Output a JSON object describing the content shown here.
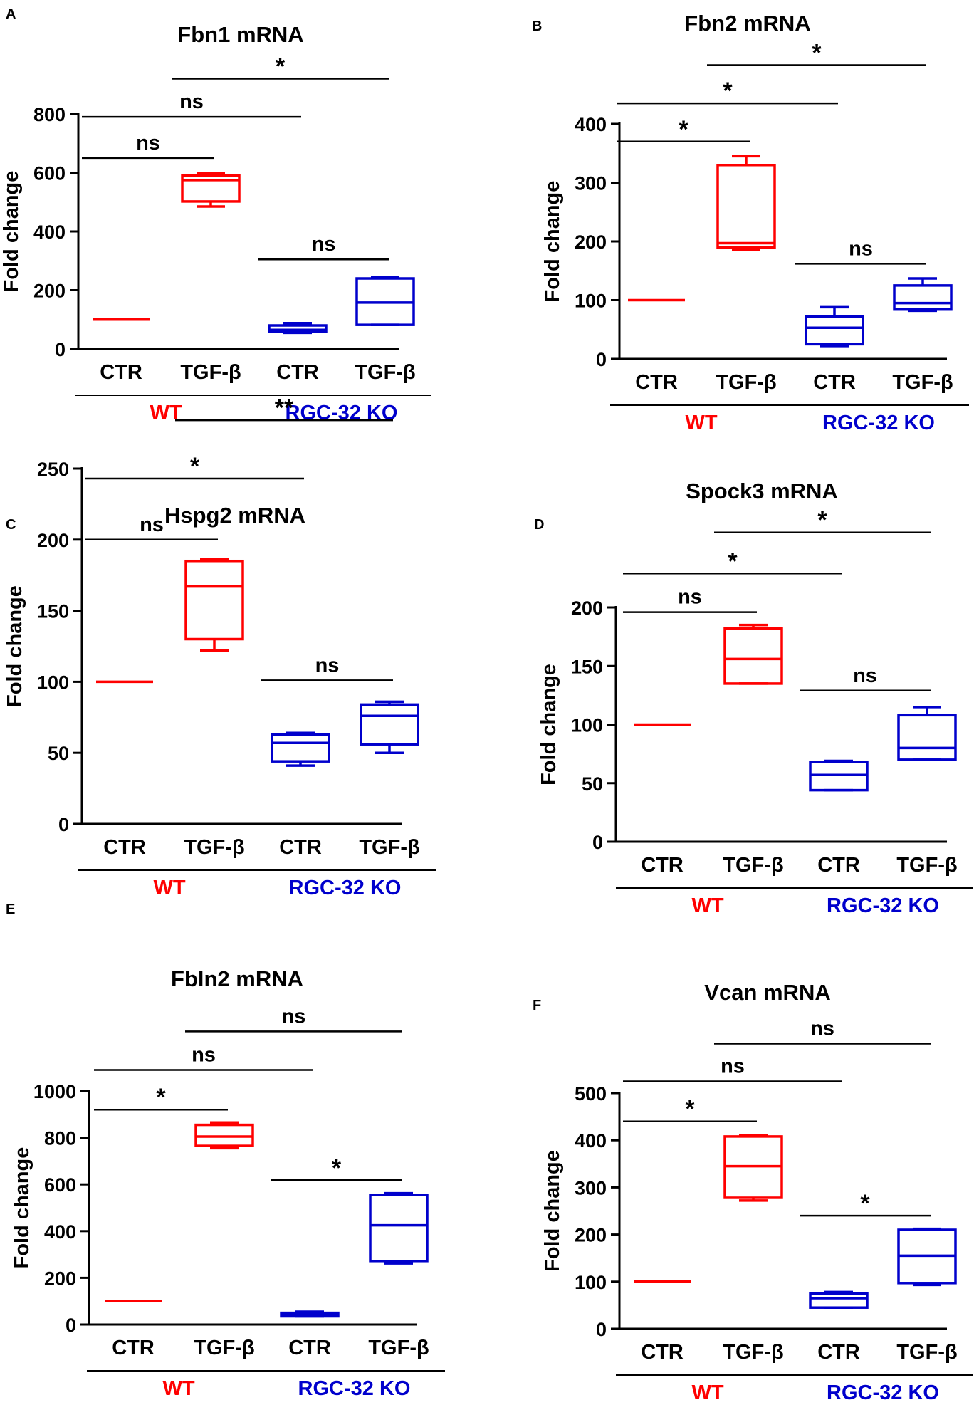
{
  "chart_data": [
    {
      "panel": "A",
      "type": "box",
      "title": "Fbn1 mRNA",
      "ylabel": "Fold change",
      "ylim": [
        0,
        800
      ],
      "yticks": [
        0,
        200,
        400,
        600,
        800
      ],
      "categories": [
        "CTR",
        "TGF-β",
        "CTR",
        "TGF-β"
      ],
      "groups": [
        {
          "label": "WT",
          "color": "#ff0000",
          "categories": [
            0,
            1
          ]
        },
        {
          "label": "RGC-32 KO",
          "color": "#0000cc",
          "categories": [
            2,
            3
          ]
        }
      ],
      "boxes": [
        {
          "category": 0,
          "group": 0,
          "min": 100,
          "q1": 100,
          "median": 100,
          "q3": 100,
          "max": 100
        },
        {
          "category": 1,
          "group": 0,
          "min": 485,
          "q1": 502,
          "median": 575,
          "q3": 590,
          "max": 598
        },
        {
          "category": 2,
          "group": 1,
          "min": 55,
          "q1": 58,
          "median": 65,
          "q3": 80,
          "max": 88
        },
        {
          "category": 3,
          "group": 1,
          "min": 82,
          "q1": 82,
          "median": 158,
          "q3": 240,
          "max": 245
        }
      ],
      "significance": [
        {
          "from": 0,
          "to": 1,
          "label": "ns",
          "level": 650
        },
        {
          "from": 2,
          "to": 3,
          "label": "ns",
          "level": 305
        },
        {
          "from": 0,
          "to": 2,
          "label": "ns",
          "level": 790
        },
        {
          "from": 1,
          "to": 3,
          "label": "*",
          "level": 920
        }
      ]
    },
    {
      "panel": "B",
      "type": "box",
      "title": "Fbn2 mRNA",
      "ylabel": "Fold change",
      "ylim": [
        0,
        400
      ],
      "yticks": [
        0,
        100,
        200,
        300,
        400
      ],
      "categories": [
        "CTR",
        "TGF-β",
        "CTR",
        "TGF-β"
      ],
      "groups": [
        {
          "label": "WT",
          "color": "#ff0000",
          "categories": [
            0,
            1
          ]
        },
        {
          "label": "RGC-32 KO",
          "color": "#0000cc",
          "categories": [
            2,
            3
          ]
        }
      ],
      "boxes": [
        {
          "category": 0,
          "group": 0,
          "min": 100,
          "q1": 100,
          "median": 100,
          "q3": 100,
          "max": 100
        },
        {
          "category": 1,
          "group": 0,
          "min": 186,
          "q1": 190,
          "median": 197,
          "q3": 330,
          "max": 345
        },
        {
          "category": 2,
          "group": 1,
          "min": 22,
          "q1": 25,
          "median": 53,
          "q3": 72,
          "max": 88
        },
        {
          "category": 3,
          "group": 1,
          "min": 82,
          "q1": 84,
          "median": 95,
          "q3": 125,
          "max": 137
        }
      ],
      "significance": [
        {
          "from": 0,
          "to": 1,
          "label": "*",
          "level": 370
        },
        {
          "from": 2,
          "to": 3,
          "label": "ns",
          "level": 162
        },
        {
          "from": 0,
          "to": 2,
          "label": "*",
          "level": 435
        },
        {
          "from": 1,
          "to": 3,
          "label": "*",
          "level": 500
        }
      ]
    },
    {
      "panel": "C",
      "type": "box",
      "title": "Hspg2 mRNA",
      "ylabel": "Fold change",
      "ylim": [
        0,
        250
      ],
      "yticks": [
        0,
        50,
        100,
        150,
        200,
        250
      ],
      "categories": [
        "CTR",
        "TGF-β",
        "CTR",
        "TGF-β"
      ],
      "groups": [
        {
          "label": "WT",
          "color": "#ff0000",
          "categories": [
            0,
            1
          ]
        },
        {
          "label": "RGC-32 KO",
          "color": "#0000cc",
          "categories": [
            2,
            3
          ]
        }
      ],
      "boxes": [
        {
          "category": 0,
          "group": 0,
          "min": 100,
          "q1": 100,
          "median": 100,
          "q3": 100,
          "max": 100
        },
        {
          "category": 1,
          "group": 0,
          "min": 122,
          "q1": 130,
          "median": 167,
          "q3": 185,
          "max": 186
        },
        {
          "category": 2,
          "group": 1,
          "min": 41,
          "q1": 44,
          "median": 57,
          "q3": 63,
          "max": 64
        },
        {
          "category": 3,
          "group": 1,
          "min": 50,
          "q1": 56,
          "median": 76,
          "q3": 84,
          "max": 86
        }
      ],
      "significance": [
        {
          "from": 0,
          "to": 1,
          "label": "ns",
          "level": 200
        },
        {
          "from": 2,
          "to": 3,
          "label": "ns",
          "level": 101
        },
        {
          "from": 0,
          "to": 2,
          "label": "*",
          "level": 243
        },
        {
          "from": 1,
          "to": 3,
          "label": "**",
          "level": 284
        }
      ]
    },
    {
      "panel": "D",
      "type": "box",
      "title": "Spock3 mRNA",
      "ylabel": "Fold change",
      "ylim": [
        0,
        200
      ],
      "yticks": [
        0,
        50,
        100,
        150,
        200
      ],
      "categories": [
        "CTR",
        "TGF-β",
        "CTR",
        "TGF-β"
      ],
      "groups": [
        {
          "label": "WT",
          "color": "#ff0000",
          "categories": [
            0,
            1
          ]
        },
        {
          "label": "RGC-32 KO",
          "color": "#0000cc",
          "categories": [
            2,
            3
          ]
        }
      ],
      "boxes": [
        {
          "category": 0,
          "group": 0,
          "min": 100,
          "q1": 100,
          "median": 100,
          "q3": 100,
          "max": 100
        },
        {
          "category": 1,
          "group": 0,
          "min": 135,
          "q1": 135,
          "median": 156,
          "q3": 182,
          "max": 185
        },
        {
          "category": 2,
          "group": 1,
          "min": 44,
          "q1": 44,
          "median": 57,
          "q3": 68,
          "max": 69
        },
        {
          "category": 3,
          "group": 1,
          "min": 70,
          "q1": 70,
          "median": 80,
          "q3": 108,
          "max": 115
        }
      ],
      "significance": [
        {
          "from": 0,
          "to": 1,
          "label": "ns",
          "level": 196
        },
        {
          "from": 2,
          "to": 3,
          "label": "ns",
          "level": 129
        },
        {
          "from": 0,
          "to": 2,
          "label": "*",
          "level": 229
        },
        {
          "from": 1,
          "to": 3,
          "label": "*",
          "level": 264
        }
      ]
    },
    {
      "panel": "E",
      "type": "box",
      "title": "Fbln2 mRNA",
      "ylabel": "Fold change",
      "ylim": [
        0,
        1000
      ],
      "yticks": [
        0,
        200,
        400,
        600,
        800,
        1000
      ],
      "categories": [
        "CTR",
        "TGF-β",
        "CTR",
        "TGF-β"
      ],
      "groups": [
        {
          "label": "WT",
          "color": "#ff0000",
          "categories": [
            0,
            1
          ]
        },
        {
          "label": "RGC-32 KO",
          "color": "#0000cc",
          "categories": [
            2,
            3
          ]
        }
      ],
      "boxes": [
        {
          "category": 0,
          "group": 0,
          "min": 100,
          "q1": 100,
          "median": 100,
          "q3": 100,
          "max": 100
        },
        {
          "category": 1,
          "group": 0,
          "min": 755,
          "q1": 765,
          "median": 805,
          "q3": 855,
          "max": 865
        },
        {
          "category": 2,
          "group": 1,
          "min": 35,
          "q1": 35,
          "median": 45,
          "q3": 50,
          "max": 55
        },
        {
          "category": 3,
          "group": 1,
          "min": 262,
          "q1": 272,
          "median": 425,
          "q3": 555,
          "max": 562
        }
      ],
      "significance": [
        {
          "from": 0,
          "to": 1,
          "label": "*",
          "level": 920
        },
        {
          "from": 2,
          "to": 3,
          "label": "*",
          "level": 618
        },
        {
          "from": 0,
          "to": 2,
          "label": "ns",
          "level": 1090
        },
        {
          "from": 1,
          "to": 3,
          "label": "ns",
          "level": 1255
        }
      ]
    },
    {
      "panel": "F",
      "type": "box",
      "title": "Vcan mRNA",
      "ylabel": "Fold change",
      "ylim": [
        0,
        500
      ],
      "yticks": [
        0,
        100,
        200,
        300,
        400,
        500
      ],
      "categories": [
        "CTR",
        "TGF-β",
        "CTR",
        "TGF-β"
      ],
      "groups": [
        {
          "label": "WT",
          "color": "#ff0000",
          "categories": [
            0,
            1
          ]
        },
        {
          "label": "RGC-32 KO",
          "color": "#0000cc",
          "categories": [
            2,
            3
          ]
        }
      ],
      "boxes": [
        {
          "category": 0,
          "group": 0,
          "min": 100,
          "q1": 100,
          "median": 100,
          "q3": 100,
          "max": 100
        },
        {
          "category": 1,
          "group": 0,
          "min": 272,
          "q1": 278,
          "median": 345,
          "q3": 408,
          "max": 410
        },
        {
          "category": 2,
          "group": 1,
          "min": 45,
          "q1": 45,
          "median": 65,
          "q3": 75,
          "max": 78
        },
        {
          "category": 3,
          "group": 1,
          "min": 93,
          "q1": 97,
          "median": 155,
          "q3": 210,
          "max": 212
        }
      ],
      "significance": [
        {
          "from": 0,
          "to": 1,
          "label": "*",
          "level": 440
        },
        {
          "from": 2,
          "to": 3,
          "label": "*",
          "level": 240
        },
        {
          "from": 0,
          "to": 2,
          "label": "ns",
          "level": 525
        },
        {
          "from": 1,
          "to": 3,
          "label": "ns",
          "level": 605
        }
      ]
    }
  ]
}
